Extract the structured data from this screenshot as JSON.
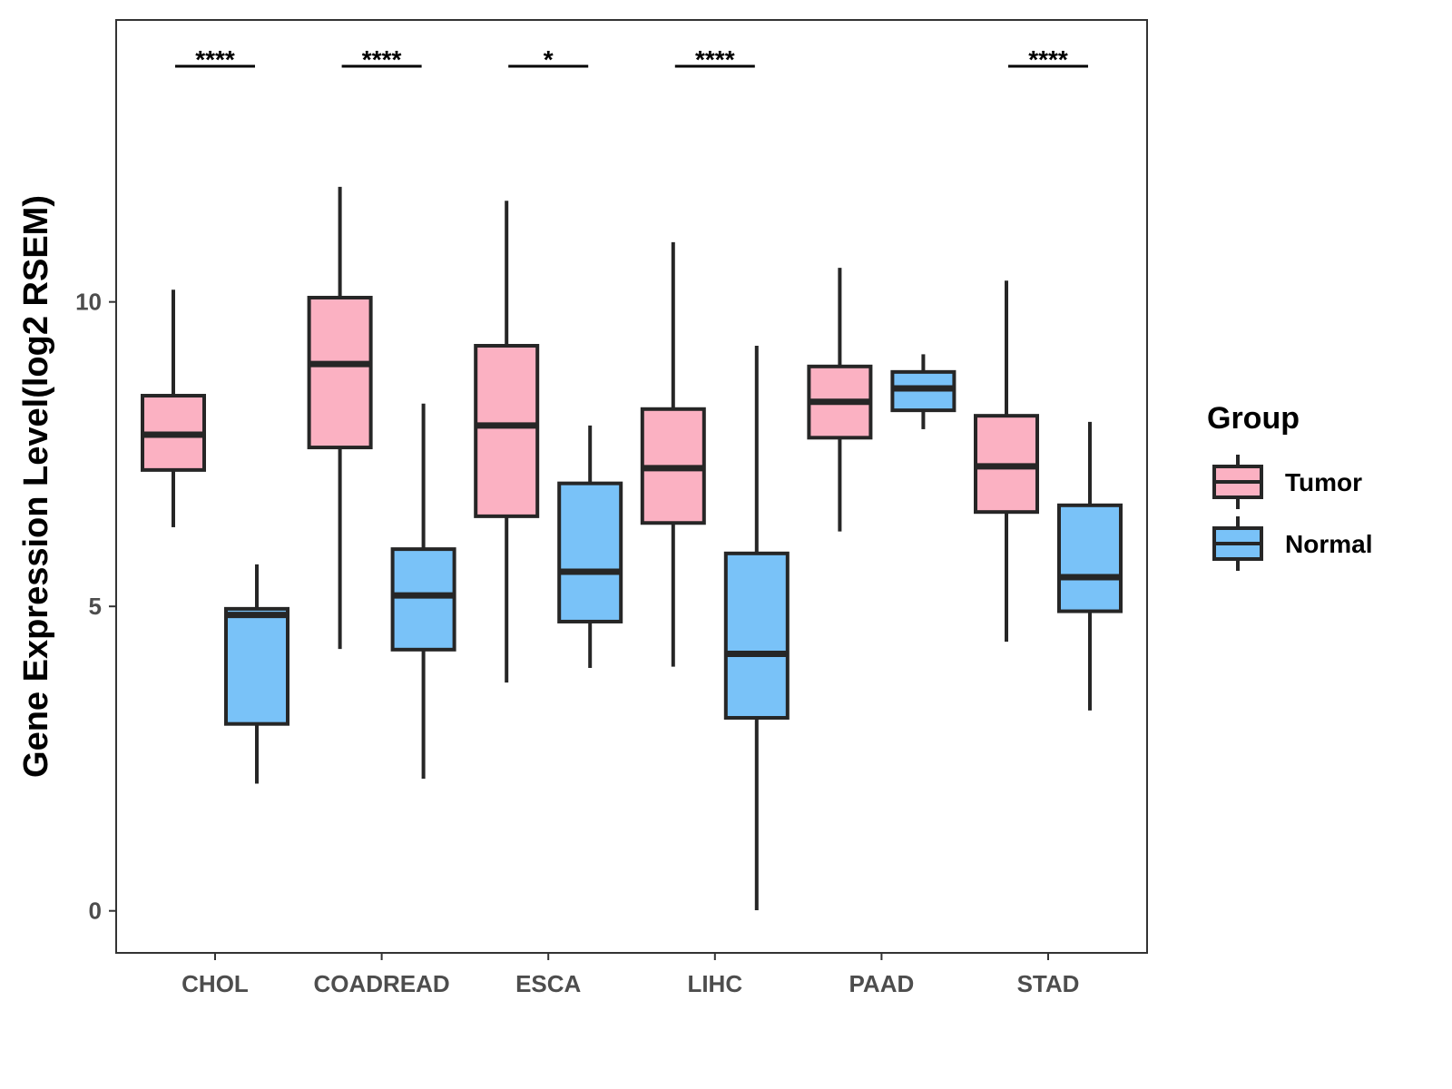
{
  "chart_data": {
    "type": "boxplot",
    "title": "",
    "xlabel": "",
    "ylabel": "Gene Expression Level(log2 RSEM)",
    "ylim": [
      -0.69,
      14.63
    ],
    "yticks": [
      0,
      5,
      10
    ],
    "grid": false,
    "categories": [
      "CHOL",
      "COADREAD",
      "ESCA",
      "LIHC",
      "PAAD",
      "STAD"
    ],
    "legend": {
      "title": "Group",
      "placement": "right",
      "entries": [
        "Tumor",
        "Normal"
      ]
    },
    "colors": {
      "Tumor": "#FBB1C2",
      "Normal": "#79C2F8",
      "outline": "#262626"
    },
    "series": [
      {
        "name": "Tumor",
        "boxes": [
          {
            "min": 6.3,
            "q1": 7.24,
            "median": 7.82,
            "q3": 8.46,
            "max": 10.2
          },
          {
            "min": 4.3,
            "q1": 7.61,
            "median": 8.98,
            "q3": 10.07,
            "max": 11.89
          },
          {
            "min": 3.75,
            "q1": 6.48,
            "median": 7.97,
            "q3": 9.28,
            "max": 11.66
          },
          {
            "min": 4.01,
            "q1": 6.37,
            "median": 7.27,
            "q3": 8.24,
            "max": 10.98
          },
          {
            "min": 6.23,
            "q1": 7.77,
            "median": 8.36,
            "q3": 8.94,
            "max": 10.56
          },
          {
            "min": 4.42,
            "q1": 6.55,
            "median": 7.3,
            "q3": 8.13,
            "max": 10.35
          }
        ]
      },
      {
        "name": "Normal",
        "boxes": [
          {
            "min": 2.09,
            "q1": 3.07,
            "median": 4.86,
            "q3": 4.96,
            "max": 5.69
          },
          {
            "min": 2.17,
            "q1": 4.29,
            "median": 5.18,
            "q3": 5.94,
            "max": 8.33
          },
          {
            "min": 3.99,
            "q1": 4.75,
            "median": 5.57,
            "q3": 7.02,
            "max": 7.97
          },
          {
            "min": 0.01,
            "q1": 3.17,
            "median": 4.22,
            "q3": 5.87,
            "max": 9.28
          },
          {
            "min": 7.91,
            "q1": 8.22,
            "median": 8.58,
            "q3": 8.85,
            "max": 9.14
          },
          {
            "min": 3.29,
            "q1": 4.92,
            "median": 5.48,
            "q3": 6.66,
            "max": 8.03
          }
        ]
      }
    ],
    "significance": [
      "****",
      "****",
      "*",
      "****",
      "",
      "****"
    ],
    "significance_y": 13.87
  }
}
